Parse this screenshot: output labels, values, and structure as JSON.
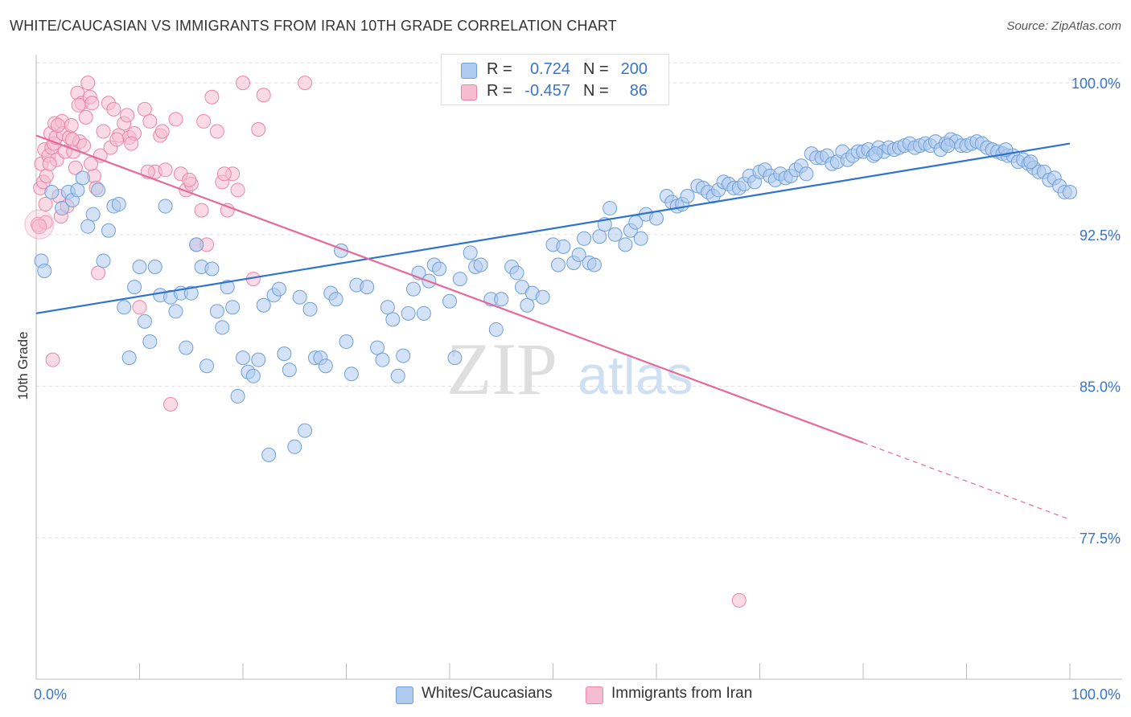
{
  "header": {
    "title": "WHITE/CAUCASIAN VS IMMIGRANTS FROM IRAN 10TH GRADE CORRELATION CHART",
    "source": "Source: ZipAtlas.com"
  },
  "legend": {
    "r_label": "R =",
    "n_label": "N =",
    "rows": [
      {
        "r": "0.724",
        "n": "200"
      },
      {
        "r": "-0.457",
        "n": "86"
      }
    ]
  },
  "watermark": {
    "zip": "ZIP",
    "atlas": "atlas"
  },
  "colors": {
    "blue_fill": "#aecbef",
    "blue_stroke": "#6f9fd8",
    "blue_line": "#2f73cf",
    "pink_fill": "#f6bcd0",
    "pink_stroke": "#eb85a6",
    "pink_line": "#e5699a",
    "value_text": "#3a74c8",
    "grid": "#dddddd"
  },
  "chart_data": {
    "type": "scatter",
    "title": "WHITE/CAUCASIAN VS IMMIGRANTS FROM IRAN 10TH GRADE CORRELATION CHART",
    "xlabel": "",
    "ylabel": "10th Grade",
    "xlim": [
      0,
      100
    ],
    "ylim": [
      70.5,
      101
    ],
    "x_tick_labels": [
      "0.0%",
      "100.0%"
    ],
    "y_ticks": [
      100.0,
      92.5,
      85.0,
      77.5
    ],
    "y_tick_labels": [
      "100.0%",
      "92.5%",
      "85.0%",
      "77.5%"
    ],
    "grid": true,
    "series": [
      {
        "name": "Whites/Caucasians",
        "r": 0.724,
        "n": 200,
        "trend": {
          "x0": 0,
          "y0": 88.6,
          "x1": 100,
          "y1": 97.0
        },
        "points": [
          [
            0.5,
            91.2
          ],
          [
            0.8,
            90.7
          ],
          [
            1.5,
            94.6
          ],
          [
            2.5,
            93.8
          ],
          [
            3.1,
            94.6
          ],
          [
            3.5,
            94.2
          ],
          [
            4,
            94.7
          ],
          [
            4.5,
            95.3
          ],
          [
            5,
            92.9
          ],
          [
            5.5,
            93.5
          ],
          [
            6,
            94.7
          ],
          [
            6.5,
            91.2
          ],
          [
            7,
            92.7
          ],
          [
            7.5,
            93.9
          ],
          [
            8,
            94.0
          ],
          [
            8.5,
            88.9
          ],
          [
            9,
            86.4
          ],
          [
            9.5,
            89.9
          ],
          [
            10,
            90.9
          ],
          [
            10.5,
            88.2
          ],
          [
            11,
            87.2
          ],
          [
            11.5,
            90.9
          ],
          [
            12,
            89.5
          ],
          [
            12.5,
            93.9
          ],
          [
            13,
            89.4
          ],
          [
            13.5,
            88.7
          ],
          [
            14,
            89.6
          ],
          [
            14.5,
            86.9
          ],
          [
            15,
            89.6
          ],
          [
            15.5,
            92.0
          ],
          [
            16,
            90.9
          ],
          [
            16.5,
            86.0
          ],
          [
            17,
            90.8
          ],
          [
            17.5,
            88.7
          ],
          [
            18,
            87.9
          ],
          [
            18.5,
            89.9
          ],
          [
            19,
            88.9
          ],
          [
            19.5,
            84.5
          ],
          [
            20,
            86.4
          ],
          [
            20.5,
            85.7
          ],
          [
            21,
            85.5
          ],
          [
            21.5,
            86.3
          ],
          [
            22,
            89.0
          ],
          [
            22.5,
            81.6
          ],
          [
            23,
            89.5
          ],
          [
            23.5,
            89.8
          ],
          [
            24,
            86.6
          ],
          [
            24.5,
            85.8
          ],
          [
            25,
            82.0
          ],
          [
            25.5,
            89.4
          ],
          [
            26,
            82.8
          ],
          [
            26.5,
            88.8
          ],
          [
            27,
            86.4
          ],
          [
            27.5,
            86.4
          ],
          [
            28,
            86.0
          ],
          [
            28.5,
            89.6
          ],
          [
            29,
            89.3
          ],
          [
            29.5,
            91.7
          ],
          [
            30,
            87.2
          ],
          [
            30.5,
            85.6
          ],
          [
            31,
            90.0
          ],
          [
            32,
            89.9
          ],
          [
            33,
            86.9
          ],
          [
            33.5,
            86.3
          ],
          [
            34,
            88.9
          ],
          [
            34.5,
            88.3
          ],
          [
            35,
            85.5
          ],
          [
            35.5,
            86.5
          ],
          [
            36,
            88.6
          ],
          [
            36.5,
            89.8
          ],
          [
            37,
            90.6
          ],
          [
            37.5,
            88.6
          ],
          [
            38,
            90.2
          ],
          [
            38.5,
            91.0
          ],
          [
            39,
            90.8
          ],
          [
            40,
            89.2
          ],
          [
            40.5,
            86.4
          ],
          [
            41,
            90.3
          ],
          [
            42,
            91.6
          ],
          [
            42.5,
            90.9
          ],
          [
            43,
            91.0
          ],
          [
            44,
            89.3
          ],
          [
            44.5,
            87.8
          ],
          [
            45,
            89.3
          ],
          [
            46,
            90.9
          ],
          [
            46.5,
            90.6
          ],
          [
            47,
            89.9
          ],
          [
            47.5,
            89.0
          ],
          [
            48,
            89.6
          ],
          [
            49,
            89.4
          ],
          [
            50,
            92.0
          ],
          [
            50.5,
            91.0
          ],
          [
            51,
            91.9
          ],
          [
            52,
            91.1
          ],
          [
            52.5,
            91.5
          ],
          [
            53,
            92.3
          ],
          [
            53.5,
            91.1
          ],
          [
            54,
            91.0
          ],
          [
            54.5,
            92.4
          ],
          [
            55,
            93.0
          ],
          [
            55.5,
            93.8
          ],
          [
            56,
            92.5
          ],
          [
            57,
            92.0
          ],
          [
            57.5,
            92.7
          ],
          [
            58,
            93.1
          ],
          [
            58.5,
            92.3
          ],
          [
            59,
            93.5
          ],
          [
            60,
            93.3
          ],
          [
            61,
            94.4
          ],
          [
            61.5,
            94.1
          ],
          [
            62,
            93.9
          ],
          [
            62.5,
            94.0
          ],
          [
            63,
            94.4
          ],
          [
            64,
            94.9
          ],
          [
            64.5,
            94.8
          ],
          [
            65,
            94.6
          ],
          [
            65.5,
            94.4
          ],
          [
            66,
            94.7
          ],
          [
            66.5,
            95.1
          ],
          [
            67,
            95.0
          ],
          [
            67.5,
            94.8
          ],
          [
            68,
            94.8
          ],
          [
            68.5,
            95.0
          ],
          [
            69,
            95.4
          ],
          [
            69.5,
            95.1
          ],
          [
            70,
            95.6
          ],
          [
            70.5,
            95.7
          ],
          [
            71,
            95.4
          ],
          [
            71.5,
            95.2
          ],
          [
            72,
            95.5
          ],
          [
            72.5,
            95.3
          ],
          [
            73,
            95.4
          ],
          [
            73.5,
            95.7
          ],
          [
            74,
            95.9
          ],
          [
            74.5,
            95.5
          ],
          [
            75,
            96.5
          ],
          [
            75.5,
            96.3
          ],
          [
            76,
            96.3
          ],
          [
            76.5,
            96.4
          ],
          [
            77,
            96.0
          ],
          [
            77.5,
            96.1
          ],
          [
            78,
            96.6
          ],
          [
            78.5,
            96.2
          ],
          [
            79,
            96.4
          ],
          [
            79.5,
            96.6
          ],
          [
            80,
            96.6
          ],
          [
            80.5,
            96.7
          ],
          [
            81,
            96.4
          ],
          [
            81.5,
            96.8
          ],
          [
            82,
            96.6
          ],
          [
            82.5,
            96.8
          ],
          [
            83,
            96.7
          ],
          [
            83.5,
            96.8
          ],
          [
            84,
            96.9
          ],
          [
            84.5,
            97.0
          ],
          [
            85,
            96.8
          ],
          [
            85.5,
            96.9
          ],
          [
            86,
            97.0
          ],
          [
            86.5,
            96.9
          ],
          [
            87,
            97.1
          ],
          [
            87.5,
            96.7
          ],
          [
            88,
            97.0
          ],
          [
            88.5,
            97.2
          ],
          [
            89,
            97.1
          ],
          [
            89.5,
            96.9
          ],
          [
            90,
            96.9
          ],
          [
            90.5,
            97.0
          ],
          [
            91,
            97.1
          ],
          [
            91.5,
            97.0
          ],
          [
            92,
            96.8
          ],
          [
            92.5,
            96.7
          ],
          [
            93,
            96.6
          ],
          [
            93.5,
            96.5
          ],
          [
            94,
            96.4
          ],
          [
            94.5,
            96.4
          ],
          [
            95,
            96.1
          ],
          [
            95.5,
            96.2
          ],
          [
            96,
            96.0
          ],
          [
            96.5,
            95.8
          ],
          [
            97,
            95.6
          ],
          [
            97.5,
            95.6
          ],
          [
            98,
            95.2
          ],
          [
            98.5,
            95.3
          ],
          [
            99,
            94.9
          ],
          [
            99.5,
            94.6
          ],
          [
            100,
            94.6
          ],
          [
            93.8,
            96.7
          ],
          [
            96.2,
            96.1
          ],
          [
            88.2,
            96.9
          ],
          [
            81.2,
            96.5
          ]
        ]
      },
      {
        "name": "Immigrants from Iran",
        "r": -0.457,
        "n": 86,
        "trend": {
          "x0": 0,
          "y0": 97.4,
          "x1": 80,
          "y1": 82.2,
          "dash_to_x": 100,
          "dash_to_y": 78.4
        },
        "points": [
          [
            0.2,
            93.0
          ],
          [
            0.4,
            94.8
          ],
          [
            0.5,
            96.0
          ],
          [
            0.7,
            95.1
          ],
          [
            0.8,
            96.7
          ],
          [
            0.9,
            94.0
          ],
          [
            1.0,
            95.4
          ],
          [
            1.2,
            96.4
          ],
          [
            1.4,
            97.5
          ],
          [
            1.5,
            96.8
          ],
          [
            1.6,
            86.3
          ],
          [
            1.7,
            97.0
          ],
          [
            1.8,
            98.0
          ],
          [
            1.9,
            97.3
          ],
          [
            2.0,
            96.2
          ],
          [
            2.2,
            94.4
          ],
          [
            2.4,
            93.4
          ],
          [
            2.5,
            98.1
          ],
          [
            2.6,
            97.5
          ],
          [
            2.8,
            96.6
          ],
          [
            3.0,
            93.9
          ],
          [
            3.2,
            97.3
          ],
          [
            3.4,
            97.9
          ],
          [
            3.6,
            96.6
          ],
          [
            3.8,
            95.8
          ],
          [
            4.0,
            99.5
          ],
          [
            4.2,
            97.1
          ],
          [
            4.4,
            99.0
          ],
          [
            4.6,
            96.9
          ],
          [
            4.8,
            98.3
          ],
          [
            5.0,
            100.0
          ],
          [
            5.2,
            99.3
          ],
          [
            5.4,
            99.0
          ],
          [
            5.6,
            95.4
          ],
          [
            5.8,
            94.8
          ],
          [
            6.0,
            90.6
          ],
          [
            6.5,
            97.6
          ],
          [
            7.0,
            99.0
          ],
          [
            7.2,
            96.8
          ],
          [
            7.5,
            98.7
          ],
          [
            8.0,
            97.4
          ],
          [
            8.5,
            98.0
          ],
          [
            9.0,
            97.3
          ],
          [
            9.5,
            97.5
          ],
          [
            10.0,
            88.9
          ],
          [
            10.5,
            98.7
          ],
          [
            11.0,
            98.1
          ],
          [
            11.5,
            95.6
          ],
          [
            12.0,
            97.4
          ],
          [
            12.5,
            95.7
          ],
          [
            13.0,
            84.1
          ],
          [
            13.5,
            98.2
          ],
          [
            14.0,
            95.5
          ],
          [
            14.5,
            94.7
          ],
          [
            15.0,
            95.0
          ],
          [
            15.5,
            92.0
          ],
          [
            16.0,
            93.7
          ],
          [
            16.5,
            92.0
          ],
          [
            17.0,
            99.3
          ],
          [
            17.5,
            97.6
          ],
          [
            18.0,
            95.1
          ],
          [
            18.5,
            93.7
          ],
          [
            19.0,
            95.5
          ],
          [
            19.5,
            94.7
          ],
          [
            20.0,
            100.0
          ],
          [
            21.0,
            90.3
          ],
          [
            21.5,
            97.7
          ],
          [
            22.0,
            99.4
          ],
          [
            26.0,
            100.0
          ],
          [
            68.0,
            74.4
          ],
          [
            9.2,
            97.0
          ],
          [
            6.2,
            96.4
          ],
          [
            3.5,
            97.2
          ],
          [
            2.1,
            97.9
          ],
          [
            1.3,
            96.0
          ],
          [
            4.1,
            98.9
          ],
          [
            7.8,
            97.2
          ],
          [
            0.9,
            93.1
          ],
          [
            12.2,
            97.6
          ],
          [
            16.2,
            98.1
          ],
          [
            5.3,
            96.0
          ],
          [
            8.8,
            98.4
          ],
          [
            10.8,
            95.6
          ],
          [
            14.8,
            95.2
          ],
          [
            18.2,
            95.5
          ],
          [
            0.3,
            92.9
          ]
        ]
      }
    ]
  },
  "bottom_legend": {
    "items": [
      {
        "label": "Whites/Caucasians"
      },
      {
        "label": "Immigrants from Iran"
      }
    ]
  }
}
